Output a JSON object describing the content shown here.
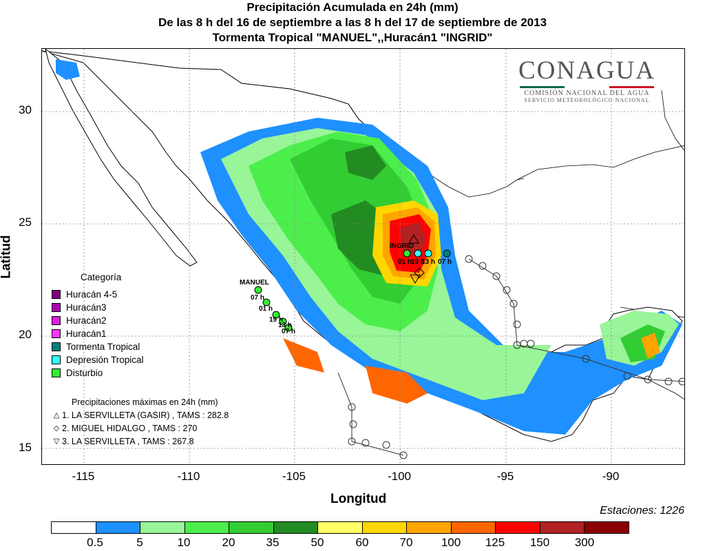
{
  "title": {
    "line1": "Precipitación Acumulada en 24h (mm)",
    "line2": "De las 8 h del 16 de septiembre  a las 8 h del 17 de septiembre de 2013",
    "line3": "Tormenta Tropical \"MANUEL\",,Huracán1 \"INGRID\""
  },
  "logo": {
    "main": "CONAGUA",
    "sub1": "COMISIÓN NACIONAL DEL AGUA",
    "sub2": "SERVICIO METEOROLÓGICO NACIONAL"
  },
  "axes": {
    "xlabel": "Longitud",
    "ylabel": "Latitud",
    "xlim": [
      -117,
      -86.5
    ],
    "ylim": [
      14.2,
      32.8
    ],
    "xticks": [
      "-115",
      "-110",
      "-105",
      "-100",
      "-95",
      "-90"
    ],
    "yticks": [
      "15",
      "20",
      "25",
      "30"
    ],
    "grid": true
  },
  "stations": "Estaciones:  1226",
  "legend": {
    "title": "Categoría",
    "items": [
      {
        "label": "Huracán 4-5",
        "color": "#800080"
      },
      {
        "label": "Huracán3",
        "color": "#b000b0"
      },
      {
        "label": "Huracán2",
        "color": "#e020e0"
      },
      {
        "label": "Huracán1",
        "color": "#ff33ff"
      },
      {
        "label": "Tormenta Tropical",
        "color": "#008080"
      },
      {
        "label": "Depresión Tropical",
        "color": "#33ffff"
      },
      {
        "label": "Disturbio",
        "color": "#33ee33"
      }
    ]
  },
  "max_precip": {
    "title": "Precipitaciones máximas en 24h (mm)",
    "items": [
      {
        "symbol": "triangle-up",
        "glyph": "△",
        "text": "1. LA SERVILLETA (GASIR) , TAMS : 282.8"
      },
      {
        "symbol": "diamond",
        "glyph": "◇",
        "text": "2. MIGUEL HIDALGO , TAMS : 270"
      },
      {
        "symbol": "triangle-down",
        "glyph": "▽",
        "text": "3. LA SERVILLETA , TAMS : 267.8"
      }
    ]
  },
  "colorbar": {
    "colors": [
      "#ffffff",
      "#1e90ff",
      "#98f598",
      "#4cee4c",
      "#32cd32",
      "#228b22",
      "#ffff66",
      "#ffd700",
      "#ffa500",
      "#ff6600",
      "#ff0000",
      "#b22222",
      "#8b0000",
      "#5a0000"
    ],
    "labels": [
      "0.5",
      "5",
      "10",
      "20",
      "35",
      "50",
      "60",
      "70",
      "100",
      "125",
      "150",
      "300"
    ]
  },
  "storms": [
    {
      "name": "MANUEL",
      "times": [
        "07 h",
        "01 h",
        "19 h",
        "13 h",
        "07 h"
      ]
    },
    {
      "name": "INGRID",
      "times": [
        "01 h",
        "19 h",
        "13 h",
        "07 h"
      ]
    }
  ],
  "chart_data": {
    "type": "heatmap",
    "title": "Precipitación Acumulada en 24h (mm)",
    "xlabel": "Longitud",
    "ylabel": "Latitud",
    "xlim": [
      -117,
      -86.5
    ],
    "ylim": [
      14.2,
      32.8
    ],
    "storm_tracks": [
      {
        "name": "MANUEL",
        "category": "Tormenta Tropical",
        "points": [
          {
            "lon": -106.6,
            "lat": 22.2,
            "time": "07 h"
          },
          {
            "lon": -106.2,
            "lat": 21.6,
            "time": "01 h"
          },
          {
            "lon": -105.8,
            "lat": 21.0,
            "time": "19 h"
          },
          {
            "lon": -105.5,
            "lat": 20.7,
            "time": "13 h"
          },
          {
            "lon": -105.2,
            "lat": 20.4,
            "time": "07 h"
          }
        ]
      },
      {
        "name": "INGRID",
        "category": "Huracán1",
        "points": [
          {
            "lon": -99.5,
            "lat": 23.7,
            "time": "01 h"
          },
          {
            "lon": -99.0,
            "lat": 23.7,
            "time": "19 h"
          },
          {
            "lon": -98.5,
            "lat": 23.7,
            "time": "13 h"
          },
          {
            "lon": -97.7,
            "lat": 23.7,
            "time": "07 h"
          }
        ]
      }
    ],
    "max_stations": [
      {
        "rank": 1,
        "name": "LA SERVILLETA (GASIR)",
        "state": "TAMS",
        "mm": 282.8
      },
      {
        "rank": 2,
        "name": "MIGUEL HIDALGO",
        "state": "TAMS",
        "mm": 270
      },
      {
        "rank": 3,
        "name": "LA SERVILLETA",
        "state": "TAMS",
        "mm": 267.8
      }
    ],
    "regions": [
      {
        "lon": -99.0,
        "lat": 24.4,
        "mm": 150
      },
      {
        "lon": -99.0,
        "lat": 23.0,
        "mm": 150
      },
      {
        "lon": -100.0,
        "lat": 22.8,
        "mm": 100
      },
      {
        "lon": -105.0,
        "lat": 18.8,
        "mm": 70
      },
      {
        "lon": -100.0,
        "lat": 17.8,
        "mm": 100
      },
      {
        "lon": -89.0,
        "lat": 19.5,
        "mm": 70
      },
      {
        "lon": -104.0,
        "lat": 24.5,
        "mm": 35
      },
      {
        "lon": -103.5,
        "lat": 27.5,
        "mm": 20
      },
      {
        "lon": -101.5,
        "lat": 26.5,
        "mm": 35
      },
      {
        "lon": -98.0,
        "lat": 20.0,
        "mm": 5
      }
    ]
  }
}
